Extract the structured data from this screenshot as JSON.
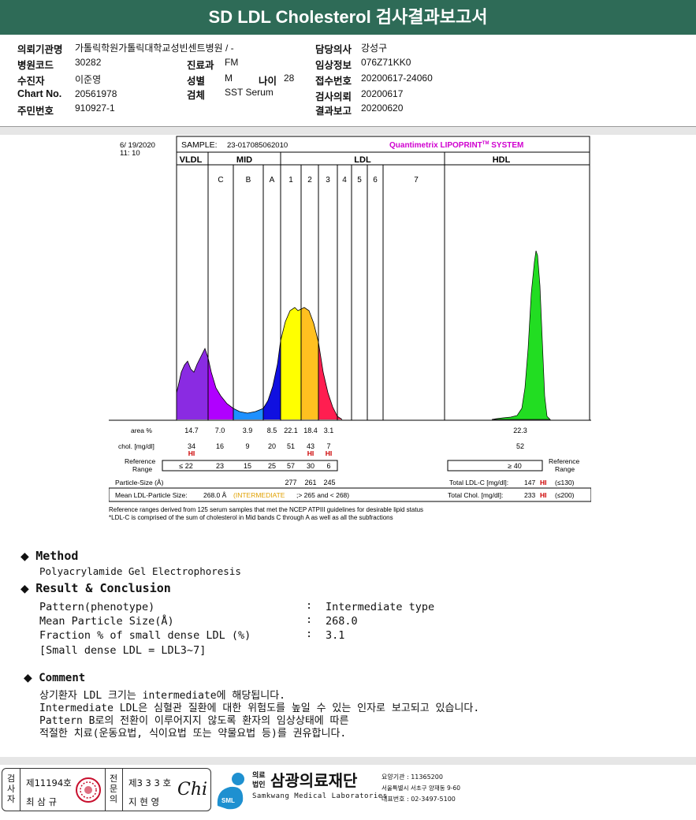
{
  "title": "SD LDL Cholesterol 검사결과보고서",
  "patient": {
    "institution_label": "의뢰기관명",
    "institution": "가톨릭학원가톨릭대학교성빈센트병원 / -",
    "hospital_code_label": "병원코드",
    "hospital_code": "30282",
    "dept_label": "진료과",
    "dept": "FM",
    "name_label": "수진자",
    "name": "이준영",
    "sex_label": "성별",
    "sex": "M",
    "age_label": "나이",
    "age": "28",
    "chart_label": "Chart No.",
    "chart_no": "20561978",
    "test_label": "검체",
    "specimen": "SST Serum",
    "ssn_label": "주민번호",
    "ssn": "910927-1",
    "doctor_label": "담당의사",
    "doctor": "강성구",
    "clinical_label": "임상정보",
    "clinical": "076Z71KK0",
    "receipt_label": "접수번호",
    "receipt_no": "20200617-24060",
    "request_label": "검사의뢰",
    "request_date": "20200617",
    "report_label": "결과보고",
    "report_date": "20200620"
  },
  "chart_data": {
    "type": "area",
    "header": {
      "datetime_line1": "6/ 19/2020",
      "datetime_line2": "11: 10",
      "sample_label": "SAMPLE:",
      "sample_id": "23-017085062010",
      "system_brand": "Quantimetrix LIPOPRINT",
      "system_tm": "TM",
      "system_suffix": " SYSTEM"
    },
    "band_groups": [
      "VLDL",
      "MID",
      "LDL",
      "HDL"
    ],
    "subfractions": [
      "C",
      "B",
      "A",
      "1",
      "2",
      "3",
      "4",
      "5",
      "6",
      "7"
    ],
    "rows": {
      "area_label": "area %",
      "area": [
        "14.7",
        "7.0",
        "3.9",
        "8.5",
        "22.1",
        "18.4",
        "3.1",
        "22.3"
      ],
      "chol_label": "chol. [mg/dl]",
      "chol": [
        "34",
        "16",
        "9",
        "20",
        "51",
        "43",
        "7",
        "52"
      ],
      "flags": [
        "HI",
        "",
        "",
        "",
        "",
        "HI",
        "HI",
        ""
      ],
      "ref_label_1": "Reference",
      "ref_label_2": "Range",
      "ref": [
        "≤ 22",
        "23",
        "15",
        "25",
        "57",
        "30",
        "6",
        "≥ 40"
      ],
      "ref_right_1": "Reference",
      "ref_right_2": "Range",
      "particle_label": "Particle-Size (Å)",
      "particle": [
        "277",
        "261",
        "245"
      ],
      "total_ldl_label": "Total LDL-C [mg/dl]:",
      "total_ldl": "147",
      "total_ldl_flag": "HI",
      "total_ldl_ref": "(≤130)",
      "mean_label": "Mean LDL-Particle Size:",
      "mean_value": "268.0 Å",
      "mean_class": "(INTERMEDIATE",
      "mean_ref": ";> 265 and < 268)",
      "total_chol_label": "Total Chol. [mg/dl]:",
      "total_chol": "233",
      "total_chol_flag": "HI",
      "total_chol_ref": "(≤200)"
    },
    "notes": [
      "Reference ranges derived from 125 serum samples that met the NCEP ATPIII guidelines for desirable lipid status",
      "*LDL-C is comprised of the sum of cholesterol in Mid bands C through A as well as all the subfractions"
    ],
    "colors": {
      "vldl": "#8a2be2",
      "midc": "#b000ff",
      "midb": "#1e90ff",
      "mida": "#1010e0",
      "ldl1": "#ffff00",
      "ldl2": "#ffc020",
      "ldl3": "#ff1e50",
      "hdl": "#22dd22",
      "flag": "#cc0000",
      "brand": "#d000d0",
      "mid_class": "#e0a000"
    }
  },
  "method": {
    "heading": "Method",
    "text": "Polyacrylamide Gel Electrophoresis"
  },
  "result": {
    "heading": "Result & Conclusion",
    "rows": [
      {
        "label": "Pattern(phenotype)",
        "sep": ":",
        "value": "Intermediate type"
      },
      {
        "label": "Mean Particle Size(Å)",
        "sep": ":",
        "value": "268.0"
      },
      {
        "label": "Fraction % of small dense LDL (%)",
        "sep": ":",
        "value": "3.1"
      }
    ],
    "note": "[Small dense LDL = LDL3~7]"
  },
  "comment": {
    "heading": "Comment",
    "lines": [
      "상기환자 LDL 크기는 intermediate에 해당됩니다.",
      "Intermediate LDL은 심혈관 질환에 대한 위험도를 높일 수 있는 인자로 보고되고 있습니다.",
      "Pattern B로의 전환이 이루어지지 않도록 환자의 임상상태에 따른",
      "적절한 치료(운동요법, 식이요법 또는 약물요법 등)를 권유합니다."
    ]
  },
  "footer": {
    "inspector_vert": "검사자",
    "inspector_no": "제11194호",
    "inspector_name": "최 삼 규",
    "specialist_vert": "전문의",
    "specialist_no": "제3 3 3 호",
    "specialist_name": "지 현 영",
    "signature": "Chi",
    "org_type_1": "의료",
    "org_type_2": "법인",
    "org_name": "삼광의료재단",
    "org_en": "Samkwang Medical Laboratories",
    "logo_text": "SML",
    "inst_code": "요양기관 : 11365200",
    "address": "서울특별시 서초구 양재동 9-60",
    "phone": "대표번호 : 02-3497-5100"
  }
}
